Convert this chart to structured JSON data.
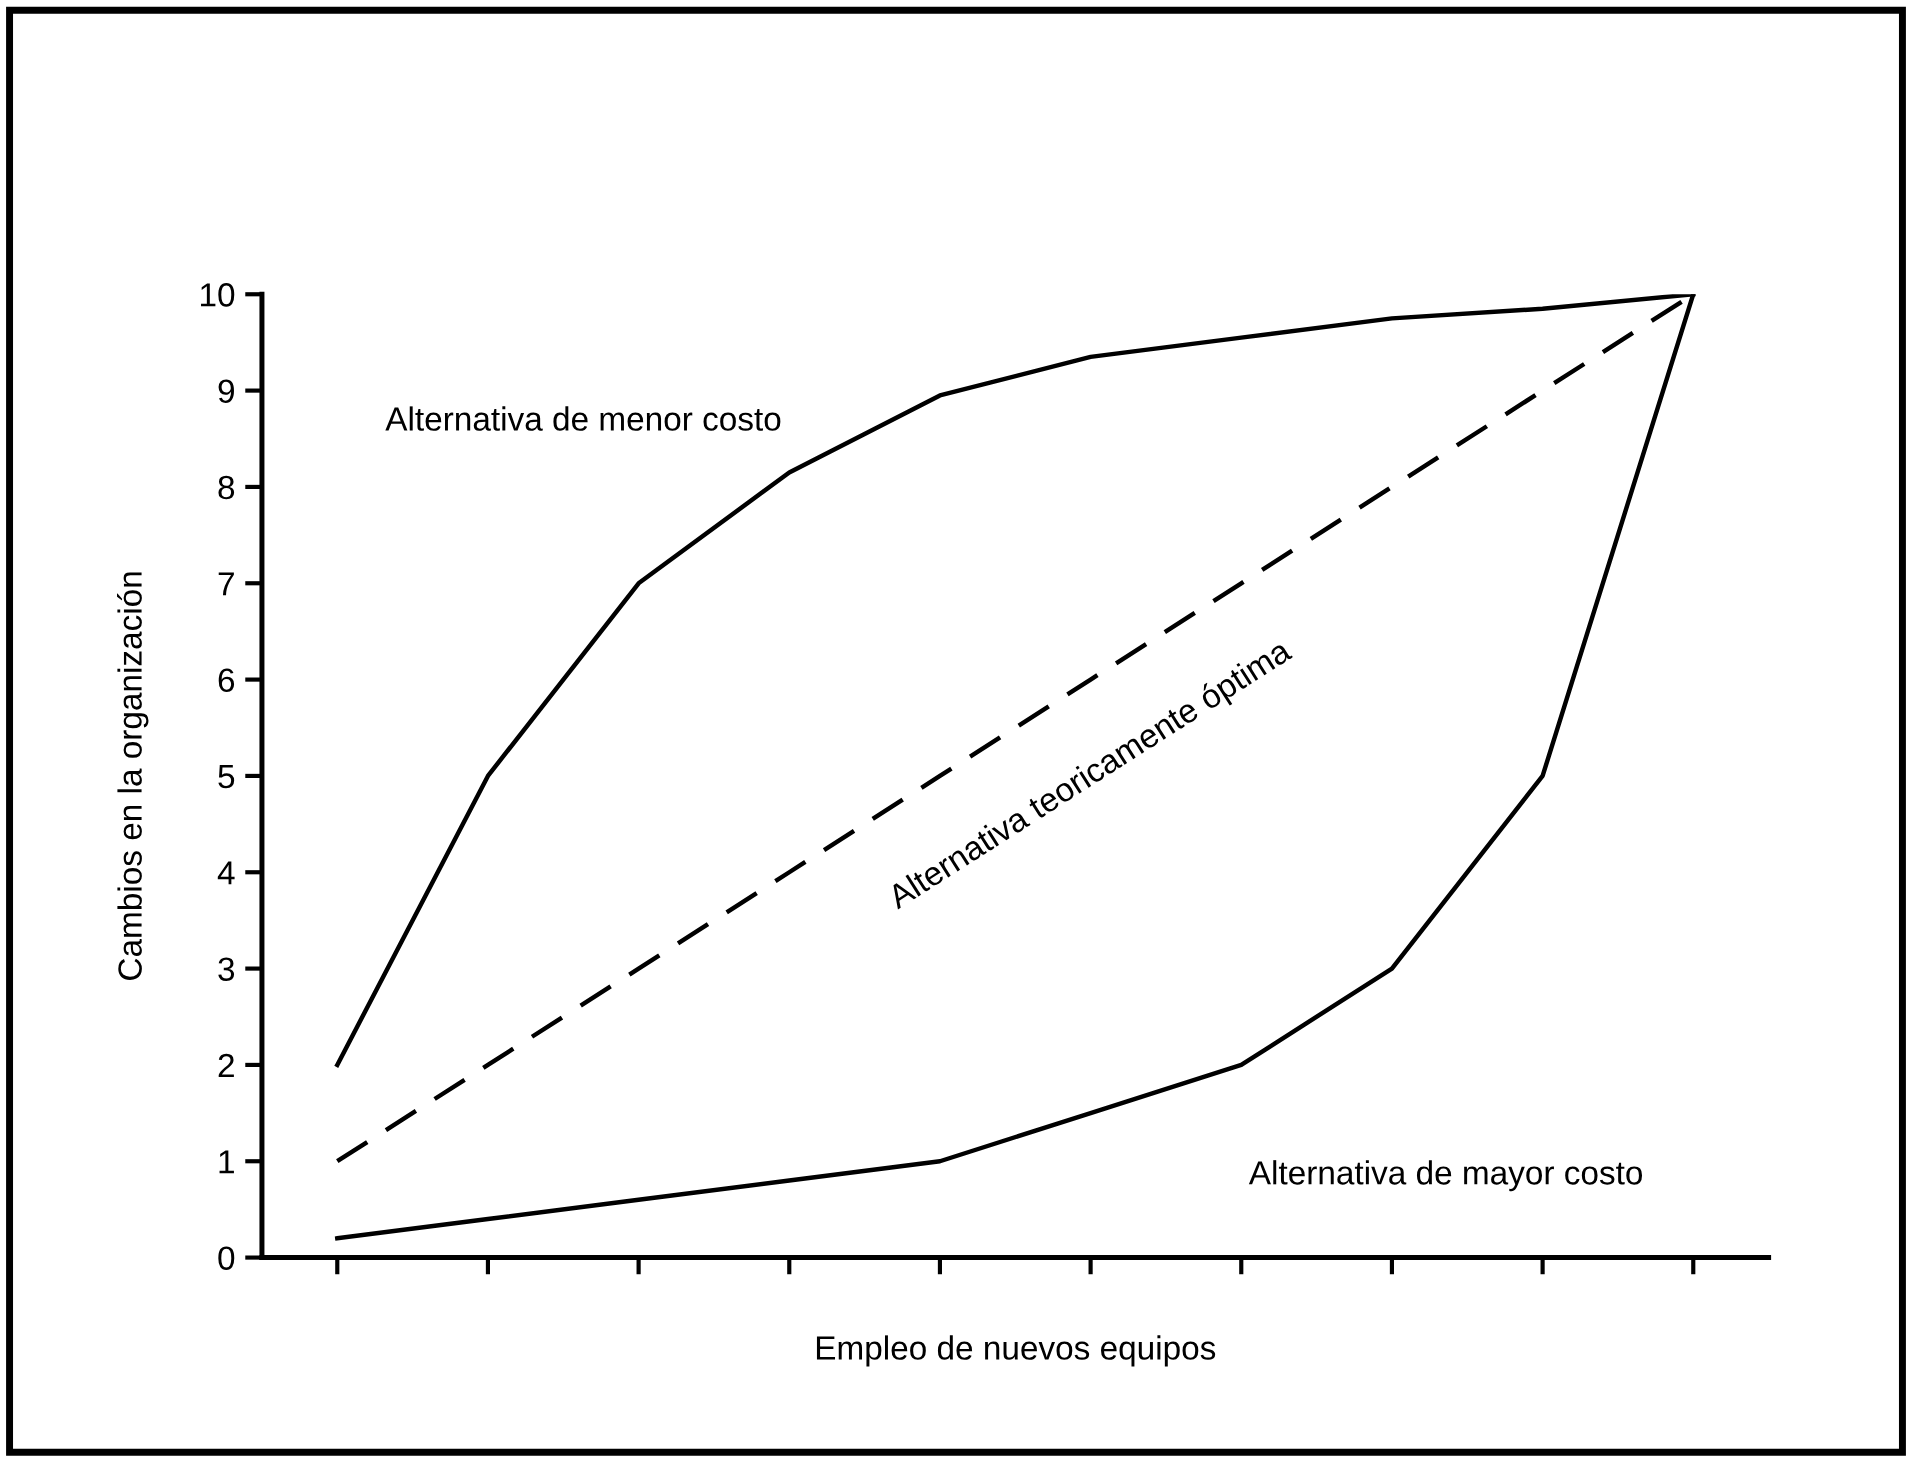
{
  "chart_data": {
    "type": "line",
    "xlabel": "Empleo de nuevos equipos",
    "ylabel": "Cambios en la organización",
    "categories": [
      null,
      null,
      null,
      null,
      null,
      null,
      null,
      null,
      null,
      null
    ],
    "series": [
      {
        "name": "Alternativa de menor costo",
        "color": "#000000",
        "line_style": "solid",
        "values": [
          2,
          5,
          7,
          8.15,
          8.95,
          9.35,
          9.55,
          9.75,
          9.85,
          10
        ]
      },
      {
        "name": "Alternativa teoricamente óptima",
        "color": "#000000",
        "line_style": "dashed",
        "values": [
          1,
          2,
          3,
          4,
          5,
          6,
          7,
          8,
          9,
          10
        ]
      },
      {
        "name": "Alternativa de mayor costo",
        "color": "#000000",
        "line_style": "solid",
        "values": [
          0.2,
          0.4,
          0.6,
          0.8,
          1,
          1.5,
          2,
          3,
          5,
          10
        ]
      }
    ],
    "ylim": [
      0,
      10
    ],
    "yticks": [
      0,
      1,
      2,
      3,
      4,
      5,
      6,
      7,
      8,
      9,
      10
    ],
    "tick_labels": "y",
    "grid": false,
    "legend": false,
    "marker": "none"
  }
}
